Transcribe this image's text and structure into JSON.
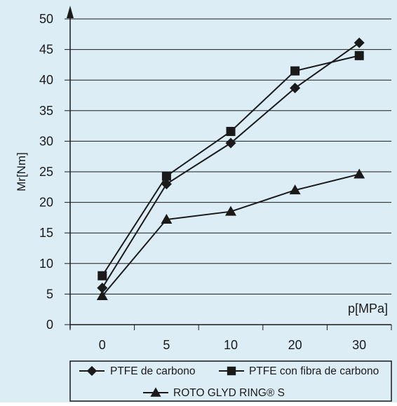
{
  "colors": {
    "background": "#dcedf5",
    "ink": "#1a1a1a",
    "grid": "#1a1a1a"
  },
  "chart_data": {
    "type": "line",
    "title": "",
    "xlabel": "p[MPa]",
    "ylabel": "Mr[Nm]",
    "categories": [
      "0",
      "5",
      "10",
      "20",
      "30"
    ],
    "yticks": [
      "0",
      "5",
      "10",
      "15",
      "20",
      "25",
      "30",
      "35",
      "40",
      "45",
      "50"
    ],
    "ylim": [
      0,
      50
    ],
    "grid": "horizontal",
    "legend_position": "bottom",
    "series": [
      {
        "name": "PTFE de carbono",
        "marker": "diamond",
        "values": [
          6,
          23,
          29.7,
          38.7,
          46.1
        ]
      },
      {
        "name": "PTFE con fibra de carbono",
        "marker": "square",
        "values": [
          8,
          24.3,
          31.6,
          41.5,
          44
        ]
      },
      {
        "name": "ROTO GLYD RING® S",
        "marker": "triangle",
        "values": [
          4.7,
          17.2,
          18.5,
          22,
          24.6
        ]
      }
    ]
  }
}
